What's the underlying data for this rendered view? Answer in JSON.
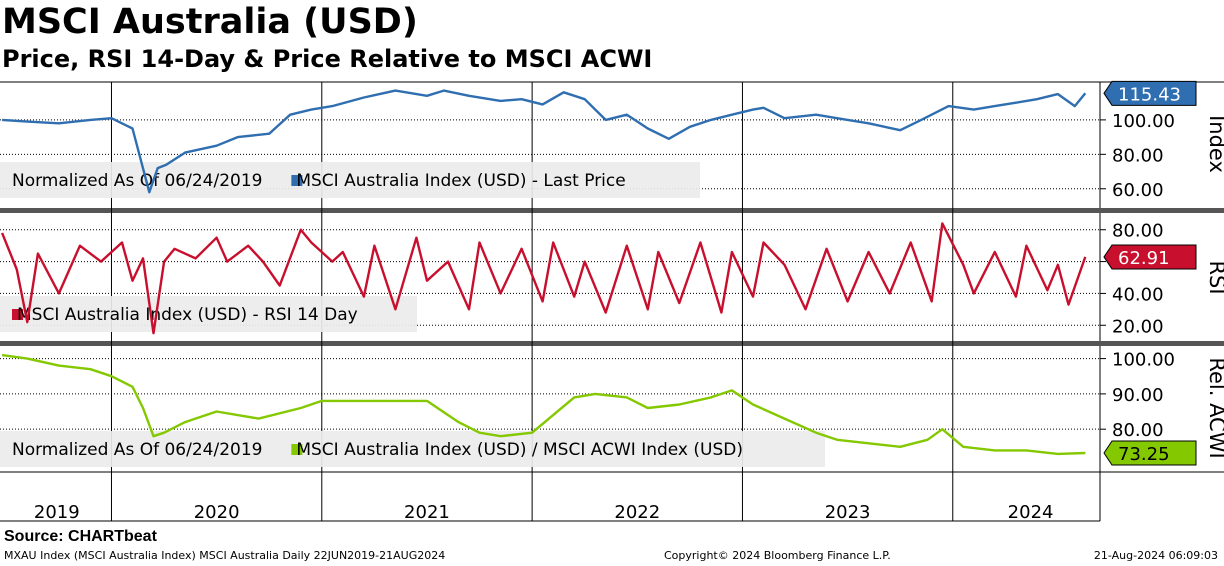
{
  "title": "MSCI Australia (USD)",
  "subtitle": "Price, RSI 14-Day & Price Relative to MSCI ACWI",
  "source": "Source: CHARTbeat",
  "footer": {
    "left": "MXAU Index (MSCI Australia Index) MSCI Australia  Daily 22JUN2019-21AUG2024",
    "center": "Copyright© 2024 Bloomberg Finance L.P.",
    "right": "21-Aug-2024 06:09:03"
  },
  "colors": {
    "price": "#2f6eb0",
    "rsi": "#c8102e",
    "relative": "#84c800"
  },
  "chart_data": [
    {
      "type": "line",
      "name": "price",
      "title": "MSCI Australia (USD)",
      "ylabel": "Index",
      "ylim": [
        50,
        122
      ],
      "yticks": [
        60,
        80,
        100
      ],
      "ytick_labels": [
        "60.00",
        "80.00",
        "100.00"
      ],
      "legend": [
        "Normalized As Of 06/24/2019",
        "MSCI Australia Index (USD) - Last Price"
      ],
      "last_value_label": "115.43",
      "series": [
        {
          "name": "MSCI Australia Index (USD) - Last Price",
          "x": [
            2019.48,
            2019.6,
            2019.75,
            2019.9,
            2020.0,
            2020.1,
            2020.18,
            2020.22,
            2020.26,
            2020.35,
            2020.5,
            2020.6,
            2020.75,
            2020.85,
            2020.95,
            2021.05,
            2021.2,
            2021.35,
            2021.5,
            2021.58,
            2021.7,
            2021.85,
            2021.95,
            2022.05,
            2022.15,
            2022.25,
            2022.35,
            2022.45,
            2022.55,
            2022.65,
            2022.75,
            2022.85,
            2022.95,
            2023.05,
            2023.1,
            2023.2,
            2023.35,
            2023.5,
            2023.6,
            2023.75,
            2023.85,
            2023.98,
            2024.1,
            2024.2,
            2024.3,
            2024.4,
            2024.5,
            2024.58,
            2024.63
          ],
          "values": [
            100,
            99,
            98,
            100,
            101,
            95,
            58,
            72,
            74,
            81,
            85,
            90,
            92,
            103,
            106,
            108,
            113,
            117,
            114,
            117,
            114,
            111,
            112,
            109,
            116,
            112,
            100,
            103,
            95,
            89,
            96,
            100,
            103,
            106,
            107,
            101,
            103,
            100,
            98,
            94,
            100,
            108,
            106,
            108,
            110,
            112,
            115,
            108,
            115.43
          ]
        }
      ]
    },
    {
      "type": "line",
      "name": "rsi",
      "ylabel": "RSI",
      "ylim": [
        12,
        88
      ],
      "yticks": [
        20,
        40,
        60,
        80
      ],
      "ytick_labels": [
        "20.00",
        "40.00",
        "60.00",
        "80.00"
      ],
      "legend": [
        "MSCI Australia Index (USD) - RSI 14 Day"
      ],
      "last_value_label": "62.91",
      "series": [
        {
          "name": "MSCI Australia Index (USD) - RSI 14 Day",
          "x": [
            2019.48,
            2019.55,
            2019.6,
            2019.65,
            2019.75,
            2019.85,
            2019.95,
            2020.05,
            2020.1,
            2020.15,
            2020.2,
            2020.25,
            2020.3,
            2020.4,
            2020.5,
            2020.55,
            2020.65,
            2020.72,
            2020.8,
            2020.9,
            2020.95,
            2021.05,
            2021.1,
            2021.2,
            2021.25,
            2021.35,
            2021.45,
            2021.5,
            2021.6,
            2021.7,
            2021.75,
            2021.85,
            2021.95,
            2022.05,
            2022.1,
            2022.2,
            2022.25,
            2022.35,
            2022.45,
            2022.55,
            2022.6,
            2022.7,
            2022.8,
            2022.9,
            2022.95,
            2023.05,
            2023.1,
            2023.2,
            2023.3,
            2023.4,
            2023.5,
            2023.6,
            2023.7,
            2023.8,
            2023.9,
            2023.95,
            2024.05,
            2024.1,
            2024.2,
            2024.3,
            2024.35,
            2024.45,
            2024.5,
            2024.55,
            2024.63
          ],
          "values": [
            78,
            55,
            22,
            65,
            40,
            70,
            60,
            72,
            48,
            62,
            15,
            60,
            68,
            62,
            75,
            60,
            70,
            60,
            45,
            80,
            72,
            60,
            66,
            38,
            70,
            30,
            75,
            48,
            60,
            30,
            72,
            40,
            68,
            35,
            72,
            38,
            60,
            28,
            70,
            30,
            66,
            34,
            72,
            28,
            66,
            38,
            72,
            58,
            30,
            68,
            35,
            66,
            40,
            72,
            35,
            84,
            58,
            40,
            66,
            38,
            70,
            42,
            58,
            33,
            62.91
          ]
        }
      ]
    },
    {
      "type": "line",
      "name": "relative",
      "ylabel": "Rel. ACWI",
      "ylim": [
        69,
        103
      ],
      "yticks": [
        80,
        90,
        100
      ],
      "ytick_labels": [
        "80.00",
        "90.00",
        "100.00"
      ],
      "legend": [
        "Normalized As Of 06/24/2019",
        "MSCI Australia Index (USD) / MSCI ACWI Index (USD)"
      ],
      "last_value_label": "73.25",
      "series": [
        {
          "name": "MSCI Australia Index (USD) / MSCI ACWI Index (USD)",
          "x": [
            2019.48,
            2019.6,
            2019.75,
            2019.9,
            2020.0,
            2020.1,
            2020.15,
            2020.2,
            2020.25,
            2020.35,
            2020.5,
            2020.7,
            2020.9,
            2021.0,
            2021.2,
            2021.35,
            2021.5,
            2021.65,
            2021.75,
            2021.85,
            2022.0,
            2022.2,
            2022.3,
            2022.45,
            2022.55,
            2022.7,
            2022.85,
            2022.95,
            2023.05,
            2023.2,
            2023.35,
            2023.45,
            2023.6,
            2023.75,
            2023.88,
            2023.95,
            2024.05,
            2024.2,
            2024.35,
            2024.5,
            2024.63
          ],
          "values": [
            101,
            100,
            98,
            97,
            95,
            92,
            86,
            78,
            79,
            82,
            85,
            83,
            86,
            88,
            88,
            88,
            88,
            82,
            79,
            78,
            79,
            89,
            90,
            89,
            86,
            87,
            89,
            91,
            87,
            83,
            79,
            77,
            76,
            75,
            77,
            80,
            75,
            74,
            74,
            73,
            73.25
          ]
        }
      ]
    }
  ],
  "x_axis": {
    "xlim": [
      2019.47,
      2024.7
    ],
    "year_labels": [
      "2019",
      "2020",
      "2021",
      "2022",
      "2023",
      "2024"
    ],
    "year_positions": [
      2019.74,
      2020.5,
      2021.5,
      2022.5,
      2023.5,
      2024.37
    ]
  }
}
